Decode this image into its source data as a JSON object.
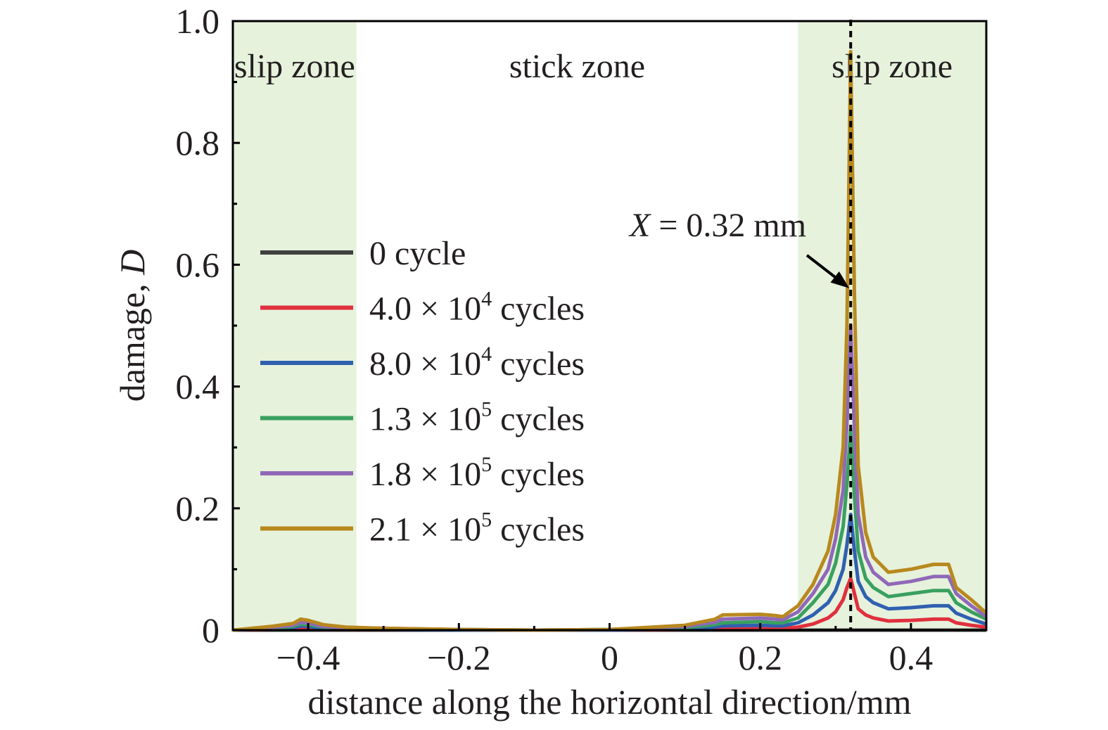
{
  "chart_data": {
    "type": "line",
    "xlabel": "distance along the horizontal direction/mm",
    "ylabel_text": "damage, ",
    "ylabel_var": "D",
    "xlim": [
      -0.5,
      0.5
    ],
    "ylim": [
      0,
      1.0
    ],
    "xticks": [
      {
        "value": -0.4,
        "label": "−0.4"
      },
      {
        "value": -0.2,
        "label": "−0.2"
      },
      {
        "value": 0,
        "label": "0"
      },
      {
        "value": 0.2,
        "label": "0.2"
      },
      {
        "value": 0.4,
        "label": "0.4"
      }
    ],
    "yticks": [
      {
        "value": 0,
        "label": "0"
      },
      {
        "value": 0.2,
        "label": "0.2"
      },
      {
        "value": 0.4,
        "label": "0.4"
      },
      {
        "value": 0.6,
        "label": "0.6"
      },
      {
        "value": 0.8,
        "label": "0.8"
      },
      {
        "value": 1.0,
        "label": "1.0"
      }
    ],
    "zones": [
      {
        "label": "slip zone",
        "from": -0.5,
        "to": -0.336,
        "shaded": true
      },
      {
        "label": "stick zone",
        "from": -0.336,
        "to": 0.25,
        "shaded": false
      },
      {
        "label": "slip zone",
        "from": 0.25,
        "to": 0.5,
        "shaded": true
      }
    ],
    "zone_color": "#e6f2dc",
    "marker_line": {
      "x": 0.32
    },
    "annotation": {
      "var": "X",
      "text": " = 0.32 mm",
      "target": [
        0.32,
        0.55
      ]
    },
    "x": [
      -0.5,
      -0.45,
      -0.42,
      -0.41,
      -0.4,
      -0.38,
      -0.35,
      -0.3,
      -0.2,
      -0.1,
      0.0,
      0.1,
      0.14,
      0.15,
      0.2,
      0.22,
      0.23,
      0.25,
      0.27,
      0.29,
      0.3,
      0.31,
      0.315,
      0.32,
      0.325,
      0.33,
      0.34,
      0.35,
      0.37,
      0.4,
      0.43,
      0.45,
      0.46,
      0.48,
      0.5
    ],
    "series": [
      {
        "name": "0 cycle",
        "label_pre": "0 cycle",
        "exp": "",
        "label_post": "",
        "color": "#404040",
        "values": [
          0,
          0,
          0,
          0,
          0,
          0,
          0,
          0,
          0,
          0,
          0,
          0,
          0,
          0,
          0,
          0,
          0,
          0,
          0,
          0,
          0,
          0,
          0,
          0,
          0,
          0,
          0,
          0,
          0,
          0,
          0,
          0,
          0,
          0,
          0
        ]
      },
      {
        "name": "4.0 × 10^4 cycles",
        "label_pre": "4.0 × 10",
        "exp": "4",
        "label_post": " cycles",
        "color": "#e0303e",
        "values": [
          0,
          0.001,
          0.002,
          0.004,
          0.003,
          0.001,
          0.001,
          0.001,
          0,
          0,
          0,
          0.001,
          0.002,
          0.003,
          0.004,
          0.003,
          0.003,
          0.005,
          0.01,
          0.02,
          0.03,
          0.05,
          0.07,
          0.085,
          0.06,
          0.035,
          0.025,
          0.02,
          0.015,
          0.016,
          0.018,
          0.018,
          0.012,
          0.008,
          0.005
        ]
      },
      {
        "name": "8.0 × 10^4 cycles",
        "label_pre": "8.0 × 10",
        "exp": "4",
        "label_post": " cycles",
        "color": "#3060b0",
        "values": [
          0,
          0.002,
          0.004,
          0.007,
          0.006,
          0.003,
          0.002,
          0.001,
          0,
          0,
          0,
          0.002,
          0.005,
          0.007,
          0.008,
          0.007,
          0.007,
          0.012,
          0.025,
          0.045,
          0.065,
          0.1,
          0.14,
          0.19,
          0.13,
          0.08,
          0.055,
          0.045,
          0.035,
          0.037,
          0.04,
          0.04,
          0.028,
          0.018,
          0.01
        ]
      },
      {
        "name": "1.3 × 10^5 cycles",
        "label_pre": "1.3 × 10",
        "exp": "5",
        "label_post": " cycles",
        "color": "#3aa060",
        "values": [
          0,
          0.003,
          0.006,
          0.01,
          0.009,
          0.005,
          0.003,
          0.002,
          0.001,
          0,
          0.001,
          0.004,
          0.009,
          0.012,
          0.014,
          0.012,
          0.012,
          0.02,
          0.045,
          0.075,
          0.11,
          0.17,
          0.24,
          0.33,
          0.22,
          0.13,
          0.085,
          0.07,
          0.055,
          0.06,
          0.065,
          0.065,
          0.045,
          0.03,
          0.018
        ]
      },
      {
        "name": "1.8 × 10^5 cycles",
        "label_pre": "1.8 × 10",
        "exp": "5",
        "label_post": " cycles",
        "color": "#9068b8",
        "values": [
          0,
          0.004,
          0.008,
          0.013,
          0.012,
          0.006,
          0.004,
          0.003,
          0.001,
          0,
          0.001,
          0.006,
          0.013,
          0.018,
          0.02,
          0.018,
          0.017,
          0.03,
          0.06,
          0.1,
          0.15,
          0.23,
          0.34,
          0.5,
          0.33,
          0.19,
          0.12,
          0.095,
          0.075,
          0.08,
          0.088,
          0.088,
          0.06,
          0.04,
          0.022
        ]
      },
      {
        "name": "2.1 × 10^5 cycles",
        "label_pre": "2.1 × 10",
        "exp": "5",
        "label_post": " cycles",
        "color": "#b8891e",
        "values": [
          0,
          0.006,
          0.011,
          0.018,
          0.016,
          0.009,
          0.005,
          0.003,
          0.001,
          0,
          0.001,
          0.008,
          0.018,
          0.025,
          0.026,
          0.024,
          0.022,
          0.04,
          0.075,
          0.13,
          0.19,
          0.3,
          0.5,
          0.95,
          0.55,
          0.27,
          0.16,
          0.12,
          0.095,
          0.1,
          0.108,
          0.108,
          0.07,
          0.05,
          0.028
        ]
      }
    ]
  }
}
